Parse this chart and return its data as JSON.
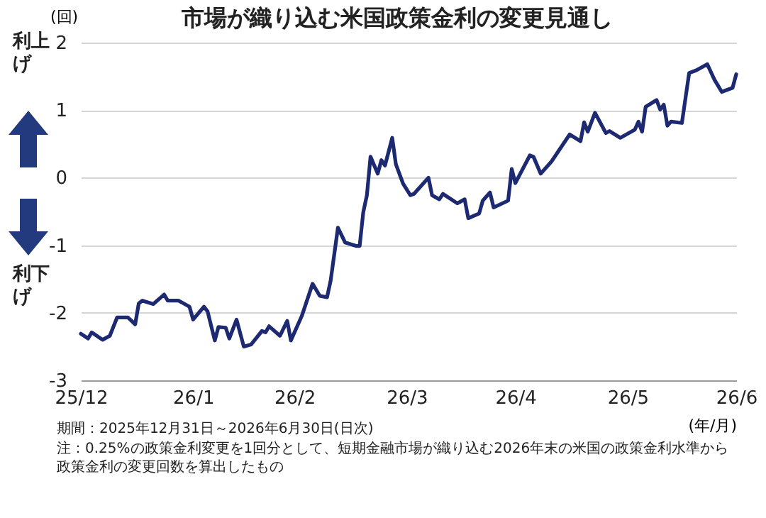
{
  "chart_data": {
    "type": "line",
    "title": "市場が織り込む米国政策金利の変更見通し",
    "ylabel": "(回)",
    "xlabel": "(年/月)",
    "annotations": [
      "利上げ",
      "利下げ",
      "期間：2025年12月31日～2026年6月30日(日次)",
      "注：0.25%の政策金利変更を1回分として、短期金融市場が織り込む2026年末の米国の政策金利水準から政策金利の変更回数を算出したもの"
    ],
    "x": [
      "2025-12-31",
      "2026-01-02",
      "2026-01-03",
      "2026-01-06",
      "2026-01-08",
      "2026-01-10",
      "2026-01-13",
      "2026-01-15",
      "2026-01-16",
      "2026-01-17",
      "2026-01-20",
      "2026-01-23",
      "2026-01-24",
      "2026-01-27",
      "2026-01-30",
      "2026-01-31",
      "2026-02-03",
      "2026-02-04",
      "2026-02-06",
      "2026-02-07",
      "2026-02-09",
      "2026-02-10",
      "2026-02-12",
      "2026-02-14",
      "2026-02-16",
      "2026-02-19",
      "2026-02-20",
      "2026-02-21",
      "2026-02-24",
      "2026-02-26",
      "2026-02-27",
      "2026-03-02",
      "2026-03-05",
      "2026-03-07",
      "2026-03-09",
      "2026-03-10",
      "2026-03-12",
      "2026-03-14",
      "2026-03-17",
      "2026-03-18",
      "2026-03-19",
      "2026-03-20",
      "2026-03-21",
      "2026-03-23",
      "2026-03-24",
      "2026-03-25",
      "2026-03-27",
      "2026-03-28",
      "2026-03-30",
      "2026-04-01",
      "2026-04-02",
      "2026-04-06",
      "2026-04-07",
      "2026-04-09",
      "2026-04-10",
      "2026-04-14",
      "2026-04-16",
      "2026-04-17",
      "2026-04-20",
      "2026-04-21",
      "2026-04-23",
      "2026-04-24",
      "2026-04-28",
      "2026-04-29",
      "2026-04-30",
      "2026-05-04",
      "2026-05-05",
      "2026-05-07",
      "2026-05-08",
      "2026-05-10",
      "2026-05-12",
      "2026-05-15",
      "2026-05-18",
      "2026-05-19",
      "2026-05-20",
      "2026-05-22",
      "2026-05-25",
      "2026-05-26",
      "2026-05-29",
      "2026-06-02",
      "2026-06-03",
      "2026-06-04",
      "2026-06-05",
      "2026-06-08",
      "2026-06-09",
      "2026-06-10",
      "2026-06-11",
      "2026-06-12",
      "2026-06-15",
      "2026-06-17",
      "2026-06-19",
      "2026-06-22",
      "2026-06-24",
      "2026-06-26",
      "2026-06-29",
      "2026-06-30"
    ],
    "series": [
      {
        "color": "#1d2a72",
        "values": [
          -2.31,
          -2.38,
          -2.29,
          -2.4,
          -2.34,
          -2.07,
          -2.07,
          -2.17,
          -1.86,
          -1.82,
          -1.87,
          -1.73,
          -1.82,
          -1.82,
          -1.91,
          -2.1,
          -1.91,
          -1.98,
          -2.41,
          -2.21,
          -2.22,
          -2.38,
          -2.1,
          -2.5,
          -2.47,
          -2.27,
          -2.29,
          -2.2,
          -2.34,
          -2.12,
          -2.41,
          -2.05,
          -1.57,
          -1.75,
          -1.77,
          -1.52,
          -0.74,
          -0.96,
          -1.01,
          -1.01,
          -0.51,
          -0.26,
          0.31,
          0.06,
          0.26,
          0.18,
          0.59,
          0.2,
          -0.09,
          -0.26,
          -0.24,
          0.0,
          -0.26,
          -0.32,
          -0.24,
          -0.38,
          -0.32,
          -0.6,
          -0.53,
          -0.34,
          -0.22,
          -0.44,
          -0.34,
          0.13,
          -0.08,
          0.33,
          0.31,
          0.06,
          0.12,
          0.24,
          0.4,
          0.64,
          0.54,
          0.82,
          0.68,
          0.96,
          0.66,
          0.69,
          0.59,
          0.71,
          0.83,
          0.68,
          1.05,
          1.15,
          1.01,
          1.08,
          0.77,
          0.83,
          0.81,
          1.55,
          1.59,
          1.68,
          1.45,
          1.27,
          1.33,
          1.53
        ]
      }
    ],
    "xlim": [
      "2025-12-31",
      "2026-06-30"
    ],
    "xticks": [
      {
        "value": "2025-12-31",
        "label": "25/12"
      },
      {
        "value": "2026-01-31",
        "label": "26/1"
      },
      {
        "value": "2026-02-28",
        "label": "26/2"
      },
      {
        "value": "2026-03-31",
        "label": "26/3"
      },
      {
        "value": "2026-04-30",
        "label": "26/4"
      },
      {
        "value": "2026-05-31",
        "label": "26/5"
      },
      {
        "value": "2026-06-30",
        "label": "26/6"
      }
    ],
    "ylim": [
      -3,
      2
    ],
    "yticks": [
      -3,
      -2,
      -1,
      0,
      1,
      2
    ],
    "grid": "y"
  }
}
